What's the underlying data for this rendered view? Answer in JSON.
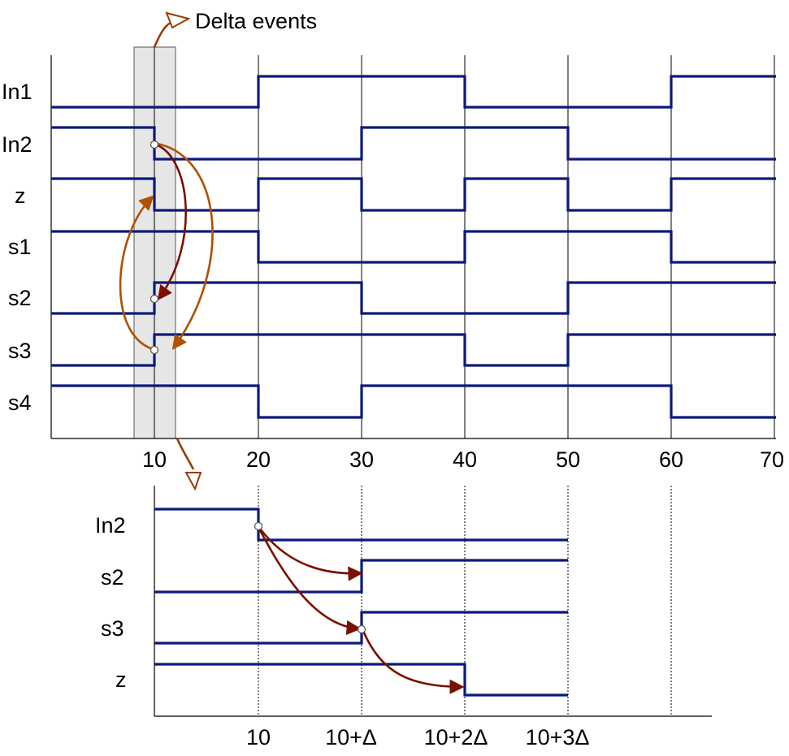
{
  "annotation": "Delta  events",
  "top": {
    "signals": [
      {
        "name": "In1",
        "label": "In1"
      },
      {
        "name": "In2",
        "label": "In2"
      },
      {
        "name": "z",
        "label": "z"
      },
      {
        "name": "s1",
        "label": "s1"
      },
      {
        "name": "s2",
        "label": "s2"
      },
      {
        "name": "s3",
        "label": "s3"
      },
      {
        "name": "s4",
        "label": "s4"
      }
    ],
    "ticks": [
      "10",
      "20",
      "30",
      "40",
      "50",
      "60",
      "70"
    ]
  },
  "zoom": {
    "signals": [
      {
        "name": "In2",
        "label": "In2"
      },
      {
        "name": "s2",
        "label": "s2"
      },
      {
        "name": "s3",
        "label": "s3"
      },
      {
        "name": "z",
        "label": "z"
      }
    ],
    "ticks": [
      "10",
      "10+Δ",
      "10+2Δ",
      "10+3Δ"
    ]
  },
  "colors": {
    "signal": "#0c1a7a",
    "causal_arrow": "#7a1000",
    "secondary_arrow": "#b05000",
    "highlight": "#e6e6e6"
  }
}
